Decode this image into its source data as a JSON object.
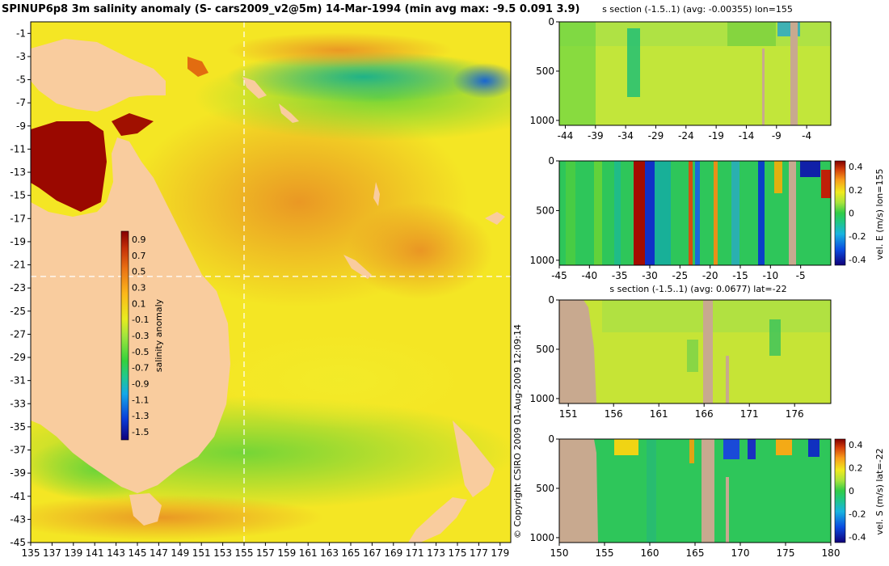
{
  "colors": {
    "land": "#f9cc9e",
    "section_land": "#c8a98f",
    "frame": "#000000",
    "crosshair": "#ffffff"
  },
  "chart_data": [
    {
      "id": "map",
      "type": "heatmap",
      "title": "SPINUP6p8 3m salinity anomaly (S- cars2009_v2@5m) 14-Mar-1994 (min avg max: -9.5 0.091 3.9)",
      "x_ticks": [
        "135",
        "137",
        "139",
        "141",
        "143",
        "145",
        "147",
        "149",
        "151",
        "153",
        "155",
        "157",
        "159",
        "161",
        "163",
        "165",
        "167",
        "169",
        "171",
        "173",
        "175",
        "177",
        "179"
      ],
      "y_ticks": [
        "-1",
        "-3",
        "-5",
        "-7",
        "-9",
        "-11",
        "-13",
        "-15",
        "-17",
        "-19",
        "-21",
        "-23",
        "-25",
        "-27",
        "-29",
        "-31",
        "-33",
        "-35",
        "-37",
        "-39",
        "-41",
        "-43",
        "-45"
      ],
      "xlim": [
        135,
        180
      ],
      "ylim": [
        -45,
        0
      ],
      "crosshair": {
        "lon": 155,
        "lat": -22
      },
      "colorbar": {
        "label": "salinity anomaly",
        "ticks": [
          "0.9",
          "0.7",
          "0.5",
          "0.3",
          "0.1",
          "-0.1",
          "-0.3",
          "-0.5",
          "-0.7",
          "-0.9",
          "-1.1",
          "-1.3",
          "-1.5"
        ],
        "range": [
          -1.6,
          1.0
        ]
      },
      "copyright": "© Copyright CSIRO 2009   01-Aug-2009 12:09:14"
    },
    {
      "id": "section_s_lon",
      "type": "heatmap",
      "title": "s section (-1.5..1) (avg: -0.00355) lon=155",
      "x_ticks": [
        "-44",
        "-39",
        "-34",
        "-29",
        "-24",
        "-19",
        "-14",
        "-9",
        "-4"
      ],
      "xlim": [
        -45,
        0
      ],
      "y_ticks": [
        "0",
        "500",
        "1000"
      ],
      "ylim": [
        1050,
        0
      ]
    },
    {
      "id": "section_u_lon",
      "type": "heatmap",
      "title": "",
      "x_ticks": [
        "-45",
        "-40",
        "-35",
        "-30",
        "-25",
        "-20",
        "-15",
        "-10",
        "-5"
      ],
      "xlim": [
        -45,
        0
      ],
      "y_ticks": [
        "0",
        "500",
        "1000"
      ],
      "ylim": [
        1050,
        0
      ],
      "colorbar": {
        "label": "vel. E (m/s) lon=155",
        "ticks": [
          "0.4",
          "0.2",
          "0",
          "-0.2",
          "-0.4"
        ],
        "range": [
          -0.45,
          0.45
        ]
      }
    },
    {
      "id": "section_s_lat",
      "type": "heatmap",
      "title": "s section (-1.5..1) (avg: 0.0677) lat=-22",
      "x_ticks": [
        "151",
        "156",
        "161",
        "166",
        "171",
        "176"
      ],
      "xlim": [
        150,
        180
      ],
      "y_ticks": [
        "0",
        "500",
        "1000"
      ],
      "ylim": [
        1050,
        0
      ]
    },
    {
      "id": "section_v_lat",
      "type": "heatmap",
      "title": "",
      "x_ticks": [
        "150",
        "155",
        "160",
        "165",
        "170",
        "175",
        "180"
      ],
      "xlim": [
        150,
        180
      ],
      "y_ticks": [
        "0",
        "500",
        "1000"
      ],
      "ylim": [
        1050,
        0
      ],
      "colorbar": {
        "label": "vel. S (m/s) lat=-22",
        "ticks": [
          "0.4",
          "0.2",
          "0",
          "-0.2",
          "-0.4"
        ],
        "range": [
          -0.45,
          0.45
        ]
      }
    }
  ]
}
